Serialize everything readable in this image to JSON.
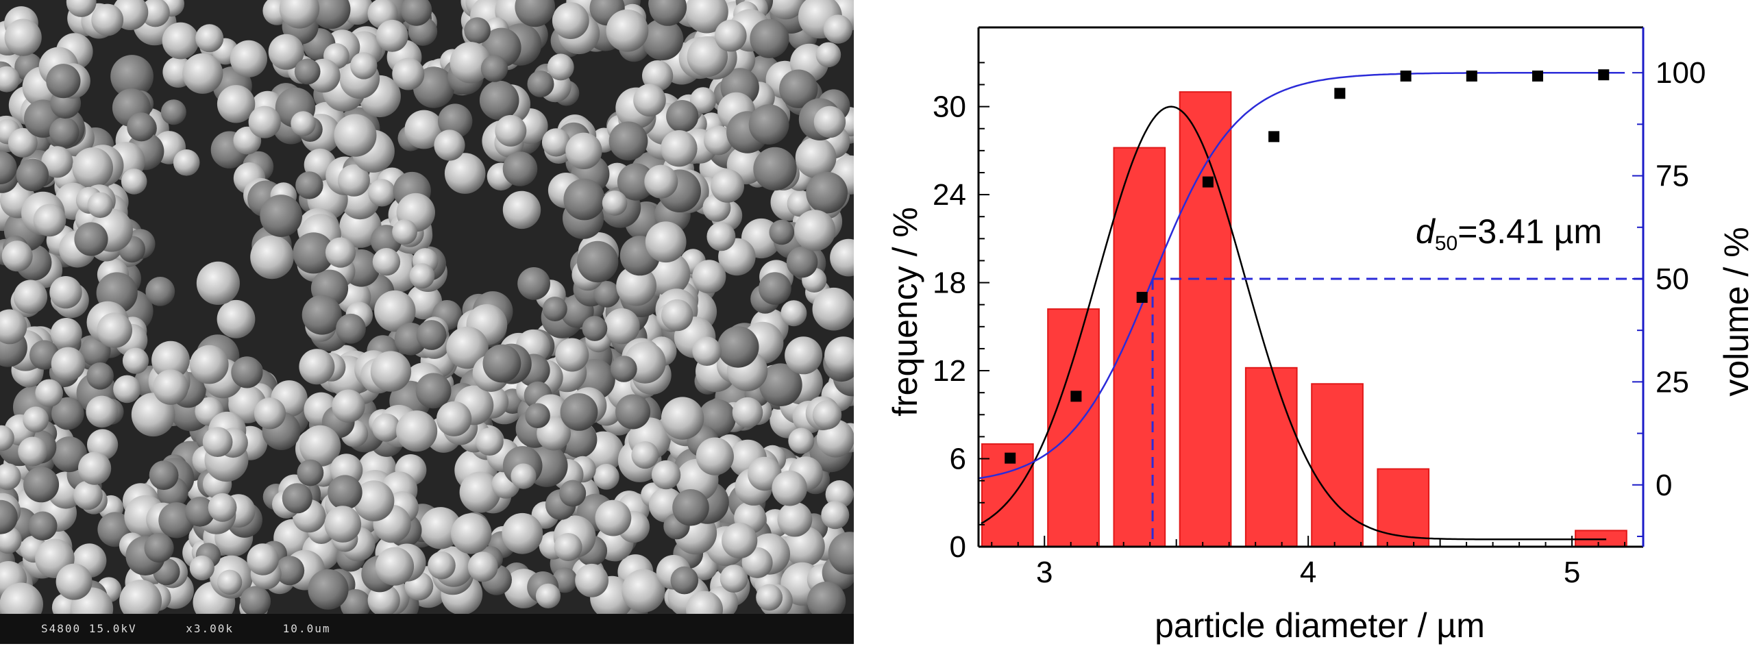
{
  "image": {
    "micrograph": {
      "info_bar_segments": [
        "S4800 15.0kV",
        "x3.00k",
        "10.0um"
      ]
    }
  },
  "chart_data": {
    "type": "bar",
    "xlabel": "particle diameter / µm",
    "ylabel": "frequency / %",
    "y2label": "volume / %",
    "xlim": [
      2.75,
      5.27
    ],
    "ylim": [
      0,
      35.4
    ],
    "y2lim": [
      -15,
      111
    ],
    "xticks": [
      3,
      4,
      5
    ],
    "yticks": [
      0,
      6,
      12,
      18,
      24,
      30
    ],
    "y2ticks": [
      0,
      25,
      50,
      75,
      100
    ],
    "grid": false,
    "legend": "none",
    "colors": {
      "bars": "#ff3b3b",
      "bar_edge": "#e01818",
      "volume_curve": "#2b2bd8",
      "volume_axis": "#1b1bc8",
      "gaussian": "#000000",
      "points": "#000000"
    },
    "histogram": {
      "bin_centers": [
        2.86,
        3.11,
        3.36,
        3.61,
        3.86,
        4.11,
        4.36,
        4.61,
        4.86,
        5.11
      ],
      "bin_width": 0.2,
      "values": [
        7.0,
        16.2,
        27.2,
        31.0,
        12.2,
        11.1,
        5.3,
        0,
        0,
        1.1
      ]
    },
    "gaussian_fit": {
      "mean": 3.48,
      "sigma": 0.28,
      "peak": 29.5,
      "baseline": 0.5
    },
    "cumulative_volume": {
      "x": [
        2.87,
        3.12,
        3.37,
        3.62,
        3.87,
        4.12,
        4.37,
        4.62,
        4.87,
        5.12
      ],
      "values": [
        6.5,
        21.5,
        45.5,
        73.5,
        84.5,
        95,
        99.2,
        99.2,
        99.2,
        99.5
      ]
    },
    "d50": {
      "value": 3.41,
      "volume_percent": 50,
      "label_symbol": "d",
      "label_subscript": "50",
      "label_value": "=3.41 µm"
    }
  }
}
